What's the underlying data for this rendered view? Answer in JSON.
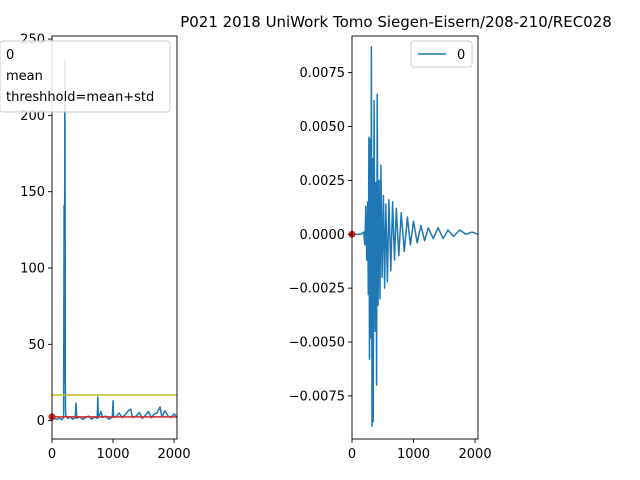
{
  "figure": {
    "title": "P021 2018 UniWork Tomo Siegen-Eisern/208-210/REC028"
  },
  "chart_data": [
    {
      "type": "line",
      "name": "left-panel",
      "xlim": [
        0,
        2048
      ],
      "ylim": [
        -12,
        252
      ],
      "xticks": [
        0,
        1000,
        2000
      ],
      "yticks": [
        0,
        50,
        100,
        150,
        200,
        250
      ],
      "legend": {
        "placement": "top-left",
        "entries": [
          "0",
          "mean",
          "threshhold=mean+std"
        ]
      },
      "series": [
        {
          "color": "#1f77b4",
          "points": [
            [
              0,
              0.5
            ],
            [
              40,
              1.5
            ],
            [
              80,
              0.8
            ],
            [
              120,
              1.8
            ],
            [
              160,
              0.6
            ],
            [
              190,
              2.0
            ],
            [
              198,
              141
            ],
            [
              202,
              122
            ],
            [
              206,
              25
            ],
            [
              210,
              236
            ],
            [
              214,
              150
            ],
            [
              218,
              30
            ],
            [
              222,
              6
            ],
            [
              230,
              3
            ],
            [
              260,
              1.5
            ],
            [
              300,
              2.5
            ],
            [
              340,
              1.0
            ],
            [
              380,
              2.0
            ],
            [
              395,
              11.5
            ],
            [
              405,
              1.5
            ],
            [
              450,
              2.5
            ],
            [
              500,
              1.0
            ],
            [
              550,
              2.0
            ],
            [
              600,
              3.0
            ],
            [
              650,
              1.0
            ],
            [
              700,
              2.5
            ],
            [
              740,
              1.5
            ],
            [
              750,
              15.5
            ],
            [
              760,
              2.0
            ],
            [
              790,
              4.5
            ],
            [
              800,
              6.0
            ],
            [
              830,
              2.0
            ],
            [
              880,
              3.0
            ],
            [
              930,
              1.0
            ],
            [
              990,
              2.5
            ],
            [
              1000,
              13.0
            ],
            [
              1010,
              2.0
            ],
            [
              1060,
              3.0
            ],
            [
              1100,
              5.0
            ],
            [
              1150,
              2.0
            ],
            [
              1200,
              4.0
            ],
            [
              1250,
              6.5
            ],
            [
              1290,
              7.5
            ],
            [
              1320,
              2.0
            ],
            [
              1380,
              3.0
            ],
            [
              1430,
              5.5
            ],
            [
              1480,
              1.5
            ],
            [
              1530,
              3.5
            ],
            [
              1580,
              6.0
            ],
            [
              1630,
              2.0
            ],
            [
              1680,
              4.5
            ],
            [
              1720,
              5.0
            ],
            [
              1770,
              9.0
            ],
            [
              1800,
              2.5
            ],
            [
              1850,
              6.5
            ],
            [
              1900,
              3.0
            ],
            [
              1950,
              2.0
            ],
            [
              2000,
              4.5
            ],
            [
              2048,
              2.0
            ]
          ]
        },
        {
          "color": "#d62728",
          "points": [
            [
              0,
              2.5
            ],
            [
              2048,
              2.5
            ]
          ]
        },
        {
          "color": "#bcbd22",
          "points": [
            [
              0,
              16.8
            ],
            [
              2048,
              16.8
            ]
          ]
        }
      ],
      "markers": [
        [
          0,
          2.5
        ]
      ]
    },
    {
      "type": "line",
      "name": "right-panel",
      "xlim": [
        0,
        2048
      ],
      "ylim": [
        -0.0095,
        0.0092
      ],
      "xticks": [
        0,
        1000,
        2000
      ],
      "yticks": [
        0.0075,
        0.005,
        0.0025,
        0.0,
        -0.0025,
        -0.005,
        -0.0075
      ],
      "ytick_labels": [
        "0.0075",
        "0.0050",
        "0.0025",
        "0.0000",
        "−0.0025",
        "−0.0050",
        "−0.0075"
      ],
      "legend": {
        "placement": "top-right",
        "entries": [
          "0"
        ]
      },
      "series": [
        {
          "color": "#1f77b4",
          "points": [
            [
              0,
              0.0
            ],
            [
              150,
              0.0
            ],
            [
              190,
              0.0001
            ],
            [
              210,
              -0.0005
            ],
            [
              225,
              0.0013
            ],
            [
              240,
              -0.0012
            ],
            [
              255,
              0.0015
            ],
            [
              265,
              -0.0028
            ],
            [
              275,
              0.0045
            ],
            [
              285,
              -0.0058
            ],
            [
              295,
              0.0044
            ],
            [
              305,
              -0.0048
            ],
            [
              315,
              0.0087
            ],
            [
              325,
              -0.0089
            ],
            [
              335,
              0.0035
            ],
            [
              345,
              -0.0087
            ],
            [
              360,
              0.0062
            ],
            [
              375,
              -0.0045
            ],
            [
              390,
              0.0024
            ],
            [
              400,
              -0.007
            ],
            [
              410,
              0.0065
            ],
            [
              425,
              -0.0033
            ],
            [
              440,
              0.0025
            ],
            [
              455,
              -0.003
            ],
            [
              470,
              0.0032
            ],
            [
              490,
              -0.002
            ],
            [
              510,
              0.0018
            ],
            [
              530,
              -0.0025
            ],
            [
              550,
              0.0014
            ],
            [
              575,
              -0.0022
            ],
            [
              600,
              0.0016
            ],
            [
              630,
              -0.0017
            ],
            [
              660,
              0.0015
            ],
            [
              690,
              -0.0012
            ],
            [
              720,
              0.0012
            ],
            [
              760,
              -0.001
            ],
            [
              800,
              0.001
            ],
            [
              850,
              -0.0008
            ],
            [
              900,
              0.0008
            ],
            [
              950,
              -0.0005
            ],
            [
              1000,
              0.0006
            ],
            [
              1060,
              -0.0004
            ],
            [
              1120,
              0.0004
            ],
            [
              1180,
              -0.0003
            ],
            [
              1240,
              0.0003
            ],
            [
              1320,
              -0.0002
            ],
            [
              1400,
              0.0003
            ],
            [
              1480,
              -0.0002
            ],
            [
              1560,
              0.0002
            ],
            [
              1650,
              -0.0001
            ],
            [
              1750,
              0.0002
            ],
            [
              1850,
              0.0
            ],
            [
              1950,
              0.0001
            ],
            [
              2048,
              0.0
            ]
          ]
        }
      ],
      "markers": [
        [
          0,
          0.0
        ]
      ],
      "marker_color": "#d62728"
    }
  ]
}
